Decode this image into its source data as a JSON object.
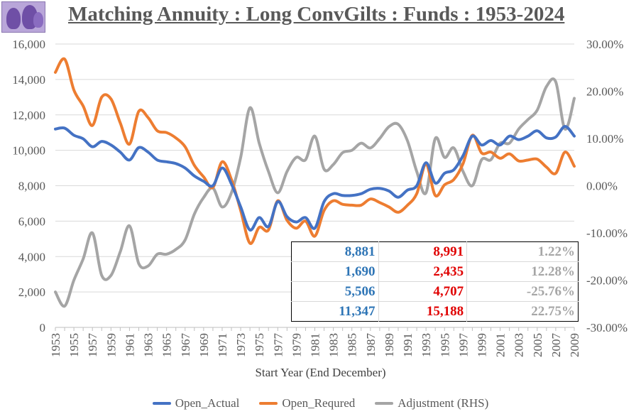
{
  "chart_data": {
    "type": "line",
    "title": "Matching Annuity : Long ConvGilts : Funds : 1953-2024",
    "xlabel": "Start Year (End December)",
    "x": [
      1953,
      1954,
      1955,
      1956,
      1957,
      1958,
      1959,
      1960,
      1961,
      1962,
      1963,
      1964,
      1965,
      1966,
      1967,
      1968,
      1969,
      1970,
      1971,
      1972,
      1973,
      1974,
      1975,
      1976,
      1977,
      1978,
      1979,
      1980,
      1981,
      1982,
      1983,
      1984,
      1985,
      1986,
      1987,
      1988,
      1989,
      1990,
      1991,
      1992,
      1993,
      1994,
      1995,
      1996,
      1997,
      1998,
      1999,
      2000,
      2001,
      2002,
      2003,
      2004,
      2005,
      2006,
      2007,
      2008,
      2009
    ],
    "x_tick_labels": [
      "1953",
      "1955",
      "1957",
      "1959",
      "1961",
      "1963",
      "1965",
      "1967",
      "1969",
      "1971",
      "1973",
      "1975",
      "1977",
      "1979",
      "1981",
      "1983",
      "1985",
      "1987",
      "1989",
      "1991",
      "1993",
      "1995",
      "1997",
      "1999",
      "2001",
      "2003",
      "2005",
      "2007",
      "2009"
    ],
    "y_left": {
      "min": 0,
      "max": 16000,
      "step": 2000,
      "tick_labels": [
        "0",
        "2,000",
        "4,000",
        "6,000",
        "8,000",
        "10,000",
        "12,000",
        "14,000",
        "16,000"
      ]
    },
    "y_right": {
      "min": -30,
      "max": 30,
      "step": 10,
      "unit": "%",
      "tick_labels": [
        "-30.00%",
        "-20.00%",
        "-10.00%",
        "0.00%",
        "10.00%",
        "20.00%",
        "30.00%"
      ]
    },
    "series": [
      {
        "name": "Open_Actual",
        "axis": "left",
        "color": "#4472c4",
        "values": [
          11200,
          11250,
          10850,
          10650,
          10200,
          10500,
          10300,
          9900,
          9450,
          10150,
          9900,
          9450,
          9350,
          9250,
          9000,
          8550,
          8250,
          8000,
          9000,
          8100,
          6800,
          5500,
          6200,
          5700,
          7100,
          6250,
          5950,
          6200,
          5600,
          7100,
          7550,
          7450,
          7450,
          7550,
          7800,
          7850,
          7700,
          7350,
          7750,
          8000,
          9300,
          8150,
          8700,
          8900,
          9700,
          10800,
          10300,
          10550,
          10300,
          10800,
          10600,
          10800,
          11100,
          10700,
          10750,
          11350,
          10800
        ]
      },
      {
        "name": "Open_Requred",
        "axis": "left",
        "color": "#ed7d31",
        "values": [
          14400,
          15150,
          13400,
          12500,
          11400,
          13000,
          12900,
          11550,
          10350,
          12200,
          11850,
          11100,
          11000,
          10700,
          10200,
          9150,
          8500,
          7900,
          9350,
          8350,
          6600,
          4750,
          5650,
          5500,
          7150,
          6050,
          5600,
          6000,
          5150,
          6600,
          7150,
          6950,
          6900,
          6900,
          7250,
          7050,
          6800,
          6500,
          6900,
          7550,
          9200,
          7450,
          8050,
          8350,
          9250,
          10850,
          9850,
          9900,
          9550,
          9800,
          9400,
          9450,
          9500,
          9050,
          8700,
          9900,
          9100
        ]
      },
      {
        "name": "Adjustment (RHS)",
        "axis": "right",
        "color": "#a5a5a5",
        "values": [
          -22.5,
          -25.5,
          -20,
          -15.5,
          -10,
          -19,
          -19,
          -14,
          -8.5,
          -16.5,
          -17,
          -14.5,
          -14.5,
          -13.5,
          -11.5,
          -6,
          -2.5,
          -0.5,
          -4.5,
          -1.5,
          6,
          16.5,
          9,
          3,
          -1.5,
          3,
          6,
          5.5,
          10.5,
          3.5,
          4.5,
          7,
          7.5,
          9,
          8,
          10,
          12.5,
          13,
          9.5,
          3,
          -1.5,
          10,
          6,
          8,
          3,
          0,
          5.5,
          5.5,
          9,
          9,
          12,
          14,
          16,
          21,
          22,
          12,
          18.5
        ]
      }
    ],
    "legend_position": "bottom",
    "table": [
      {
        "actual": "8,881",
        "required": "8,991",
        "adjustment": "1.22%"
      },
      {
        "actual": "1,690",
        "required": "2,435",
        "adjustment": "12.28%"
      },
      {
        "actual": "5,506",
        "required": "4,707",
        "adjustment": "-25.76%"
      },
      {
        "actual": "11,347",
        "required": "15,188",
        "adjustment": "22.75%"
      }
    ]
  },
  "colors": {
    "gridline": "#d9d9d9",
    "axis_text": "#595959",
    "title": "#595959"
  }
}
